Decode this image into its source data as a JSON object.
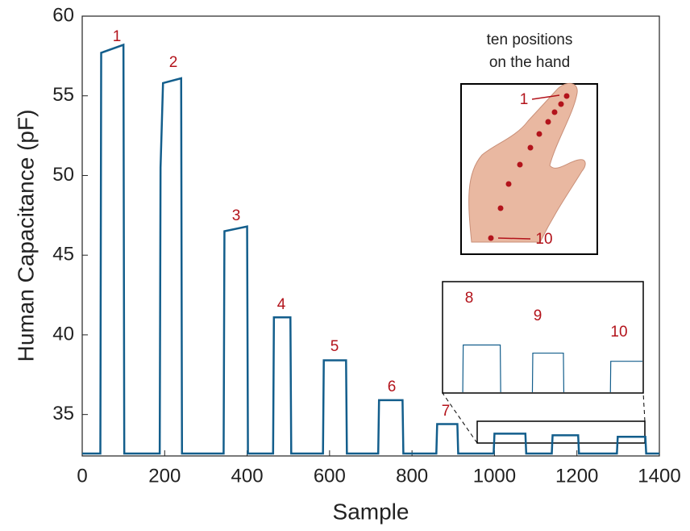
{
  "chart_data": {
    "type": "line",
    "x_label": "Sample",
    "y_label": "Human Capacitance (pF)",
    "xlim": [
      0,
      1400
    ],
    "ylim": [
      32.4,
      60
    ],
    "xticks": [
      0,
      200,
      400,
      600,
      800,
      1000,
      1200,
      1400
    ],
    "yticks": [
      35,
      40,
      45,
      50,
      55,
      60
    ],
    "grid": false,
    "series": [
      {
        "color": "#135e8c",
        "x": [
          0,
          44,
          46,
          100,
          102,
          188,
          190,
          196,
          240,
          242,
          343,
          345,
          400,
          402,
          463,
          465,
          505,
          507,
          584,
          586,
          640,
          642,
          718,
          720,
          777,
          779,
          859,
          861,
          910,
          912,
          998,
          1000,
          1075,
          1077,
          1139,
          1141,
          1203,
          1205,
          1297,
          1299,
          1366,
          1368,
          1400
        ],
        "values": [
          32.55,
          32.55,
          57.7,
          58.2,
          32.55,
          32.55,
          50.5,
          55.8,
          56.1,
          32.55,
          32.55,
          46.5,
          46.8,
          32.55,
          32.55,
          41.1,
          41.1,
          32.55,
          32.55,
          38.4,
          38.4,
          32.55,
          32.55,
          35.9,
          35.9,
          32.55,
          32.55,
          34.4,
          34.4,
          32.55,
          32.55,
          33.8,
          33.8,
          32.55,
          32.55,
          33.7,
          33.7,
          32.55,
          32.55,
          33.6,
          33.6,
          32.55,
          32.55
        ]
      }
    ],
    "annotations": [
      "1",
      "2",
      "3",
      "4",
      "5",
      "6",
      "7",
      "8",
      "9",
      "10"
    ],
    "inset": {
      "title_lines": [
        "ten positions",
        "on the hand"
      ],
      "first_label": "1",
      "last_label": "10"
    }
  }
}
